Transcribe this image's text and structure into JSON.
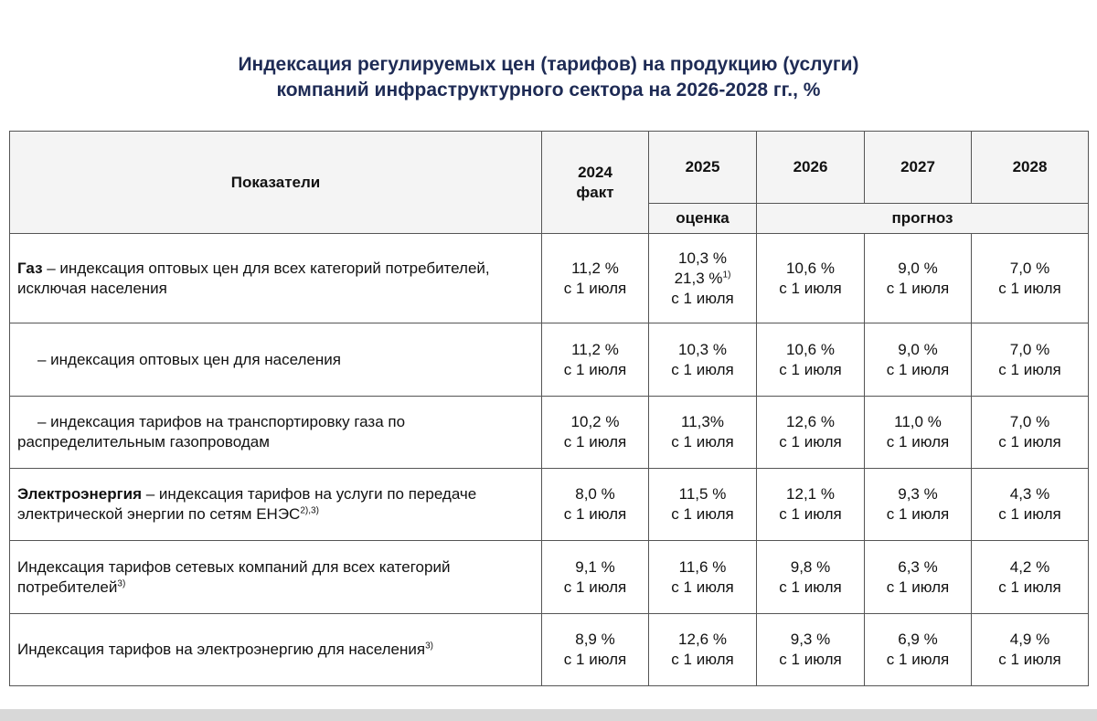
{
  "title": [
    "Индексация регулируемых цен (тарифов) на продукцию (услуги)",
    "компаний инфраструктурного сектора на 2026-2028 гг., %"
  ],
  "table": {
    "header": {
      "indicator": "Показатели",
      "years": [
        "2024",
        "2025",
        "2026",
        "2027",
        "2028"
      ],
      "fact": "факт",
      "estimate": "оценка",
      "forecast": "прогноз"
    },
    "rows": [
      {
        "bold": "Газ",
        "label": " – индексация оптовых цен для всех категорий потребителей, исключая населения",
        "cells": [
          [
            "11,2 %",
            "с 1 июля"
          ],
          [
            "10,3 %",
            {
              "text": "21,3 %",
              "sup": "1)"
            },
            "с 1 июля"
          ],
          [
            "10,6 %",
            "с 1 июля"
          ],
          [
            "9,0 %",
            "с 1 июля"
          ],
          [
            "7,0 %",
            "с 1 июля"
          ]
        ]
      },
      {
        "label": "– индексация оптовых цен для населения",
        "cells": [
          [
            "11,2 %",
            "с 1 июля"
          ],
          [
            "10,3 %",
            "с 1 июля"
          ],
          [
            "10,6 %",
            "с 1 июля"
          ],
          [
            "9,0 %",
            "с 1 июля"
          ],
          [
            "7,0 %",
            "с 1 июля"
          ]
        ]
      },
      {
        "label": "– индексация тарифов на транспортировку газа по распределительным газопроводам",
        "cells": [
          [
            "10,2 %",
            "с 1 июля"
          ],
          [
            "11,3%",
            "с 1 июля"
          ],
          [
            "12,6 %",
            "с 1 июля"
          ],
          [
            "11,0 %",
            "с 1 июля"
          ],
          [
            "7,0 %",
            "с 1 июля"
          ]
        ]
      },
      {
        "bold": "Электроэнергия",
        "label": " – индексация тарифов на услуги по передаче электрической энергии по сетям ЕНЭС",
        "sup": "2),3)",
        "cells": [
          [
            "8,0 %",
            "с 1 июля"
          ],
          [
            "11,5 %",
            "с 1 июля"
          ],
          [
            "12,1 %",
            "с 1 июля"
          ],
          [
            "9,3 %",
            "с 1 июля"
          ],
          [
            "4,3 %",
            "с 1 июля"
          ]
        ]
      },
      {
        "label": "Индексация тарифов сетевых компаний для всех категорий потребителей",
        "sup": "3)",
        "cells": [
          [
            "9,1 %",
            "с 1 июля"
          ],
          [
            "11,6 %",
            "с 1 июля"
          ],
          [
            "9,8 %",
            "с 1 июля"
          ],
          [
            "6,3 %",
            "с 1 июля"
          ],
          [
            "4,2 %",
            "с 1 июля"
          ]
        ]
      },
      {
        "label": "Индексация тарифов на электроэнергию для населения",
        "sup": "3)",
        "cells": [
          [
            "8,9 %",
            "с 1 июля"
          ],
          [
            "12,6 %",
            "с 1 июля"
          ],
          [
            "9,3 %",
            "с 1 июля"
          ],
          [
            "6,9 %",
            "с 1 июля"
          ],
          [
            "4,9 %",
            "с 1 июля"
          ]
        ]
      }
    ]
  }
}
